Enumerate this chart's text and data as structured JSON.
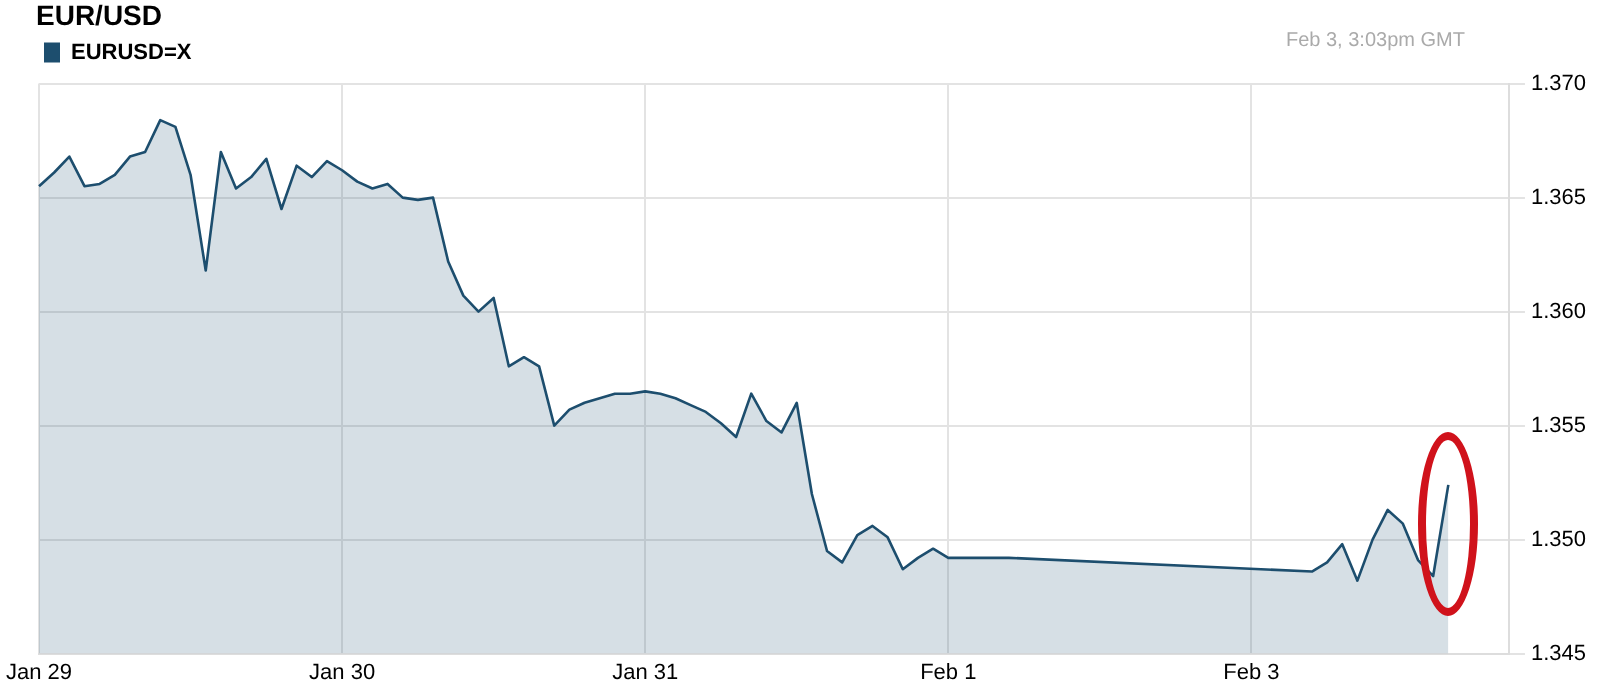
{
  "chart_data": {
    "type": "area",
    "title": "EUR/USD",
    "annotations": [
      "Feb 3, 3:03pm GMT"
    ],
    "categories": [
      "Jan 29",
      null,
      null,
      null,
      null,
      null,
      null,
      null,
      null,
      null,
      null,
      null,
      null,
      null,
      null,
      null,
      null,
      null,
      null,
      null,
      "Jan 30",
      null,
      null,
      null,
      null,
      null,
      null,
      null,
      null,
      null,
      null,
      null,
      null,
      null,
      null,
      null,
      null,
      null,
      null,
      null,
      "Jan 31",
      null,
      null,
      null,
      null,
      null,
      null,
      null,
      null,
      null,
      null,
      null,
      null,
      null,
      null,
      null,
      null,
      null,
      null,
      null,
      "Feb 1",
      null,
      null,
      null,
      null,
      null,
      null,
      null,
      null,
      null,
      null,
      null,
      null,
      null,
      null,
      null,
      null,
      null,
      null,
      null,
      "Feb 3",
      null,
      null,
      null,
      null,
      null,
      null,
      null,
      null,
      null,
      null,
      null,
      null,
      null,
      null,
      null,
      null,
      null
    ],
    "series": [
      {
        "name": "EURUSD=X",
        "color": "#1d4e6e",
        "values": [
          1.3655,
          1.3661,
          1.3668,
          1.3655,
          1.3656,
          1.366,
          1.3668,
          1.367,
          1.3684,
          1.3681,
          1.366,
          1.3618,
          1.367,
          1.3654,
          1.3659,
          1.3667,
          1.3645,
          1.3664,
          1.3659,
          1.3666,
          1.3662,
          1.3657,
          1.3654,
          1.3656,
          1.365,
          1.3649,
          1.365,
          1.3622,
          1.3607,
          1.36,
          1.3606,
          1.3576,
          1.358,
          1.3576,
          1.355,
          1.3557,
          1.356,
          1.3562,
          1.3564,
          1.3564,
          1.3565,
          1.3564,
          1.3562,
          1.3559,
          1.3556,
          1.3551,
          1.3545,
          1.3564,
          1.3552,
          1.3547,
          1.356,
          1.352,
          1.3495,
          1.349,
          1.3502,
          1.3506,
          1.3501,
          1.3487,
          1.3492,
          1.3496,
          1.3492,
          1.3492,
          1.3492,
          1.3492,
          1.3492,
          null,
          null,
          null,
          null,
          null,
          null,
          null,
          null,
          null,
          null,
          null,
          null,
          null,
          null,
          null,
          null,
          null,
          null,
          null,
          1.3486,
          1.349,
          1.3498,
          1.3482,
          1.35,
          1.3513,
          1.3507,
          1.3491,
          1.3484,
          1.3524,
          null,
          null,
          null,
          null
        ]
      }
    ],
    "ylim": [
      1.345,
      1.37
    ],
    "yticks": [
      {
        "value": 1.345,
        "label": "1.345"
      },
      {
        "value": 1.35,
        "label": "1.350"
      },
      {
        "value": 1.355,
        "label": "1.355"
      },
      {
        "value": 1.36,
        "label": "1.360"
      },
      {
        "value": 1.365,
        "label": "1.365"
      },
      {
        "value": 1.37,
        "label": "1.370"
      }
    ],
    "grid": true,
    "legend": "top left",
    "marker": "none",
    "line_style": "solid"
  }
}
